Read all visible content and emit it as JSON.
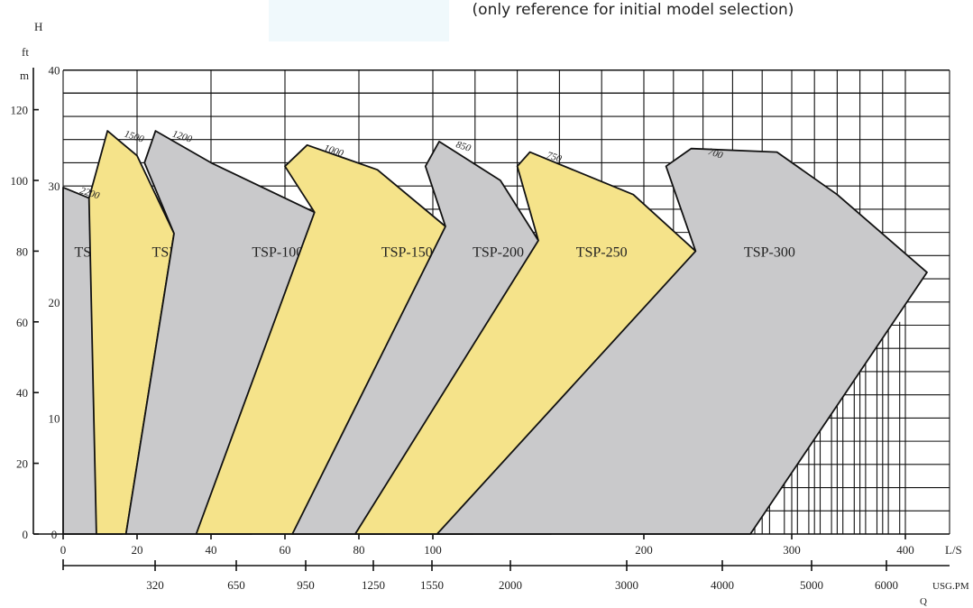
{
  "subtitle": "(only reference for initial model selection)",
  "colors": {
    "gray_region": "#c9c9cb",
    "yellow_region": "#f5e38a",
    "highlight_box": "#f0f9fc"
  },
  "chart_data": {
    "type": "area",
    "title": "",
    "subtitle": "(only reference for initial model selection)",
    "y_axis_label": "H",
    "y_units": [
      "ft",
      "m"
    ],
    "x_axis_label": "Q",
    "x_units": [
      "L/S",
      "USG.PM"
    ],
    "y_ft_ticks": [
      "0",
      "20",
      "40",
      "60",
      "80",
      "100",
      "120"
    ],
    "y_m_ticks": [
      "0",
      "10",
      "20",
      "30",
      "40"
    ],
    "x_ls_ticks": [
      "0",
      "20",
      "40",
      "60",
      "80",
      "100",
      "200",
      "300",
      "400"
    ],
    "x_usgpm_ticks": [
      "320",
      "650",
      "950",
      "1250",
      "1550",
      "2000",
      "3000",
      "4000",
      "5000",
      "6000"
    ],
    "grid": true,
    "notes": "Q axis is linear from 0 to 100 L/S, then compressed (log-like) from 100 to 400 L/S. Head axis in ft (left) and m (inner).",
    "series": [
      {
        "name": "TSP-40",
        "color": "gray",
        "max_speed_rpm": "2200",
        "outline": [
          [
            0,
            0
          ],
          [
            0,
            98
          ],
          [
            7,
            95
          ],
          [
            13,
            89
          ],
          [
            17,
            80
          ],
          [
            16,
            0
          ]
        ]
      },
      {
        "name": "TSP-65",
        "color": "yellow",
        "max_speed_rpm": "1500",
        "outline": [
          [
            9,
            0
          ],
          [
            7,
            95
          ],
          [
            12,
            114
          ],
          [
            20,
            107
          ],
          [
            30,
            85
          ],
          [
            17,
            0
          ]
        ]
      },
      {
        "name": "TSP-100",
        "color": "gray",
        "max_speed_rpm": "1200",
        "outline": [
          [
            17,
            0
          ],
          [
            30,
            85
          ],
          [
            22,
            105
          ],
          [
            25,
            114
          ],
          [
            40,
            105
          ],
          [
            68,
            91
          ],
          [
            51,
            0
          ]
        ]
      },
      {
        "name": "TSP-150",
        "color": "yellow",
        "max_speed_rpm": "1000",
        "outline": [
          [
            36,
            0
          ],
          [
            68,
            91
          ],
          [
            60,
            104
          ],
          [
            66,
            110
          ],
          [
            85,
            103
          ],
          [
            106,
            87
          ],
          [
            87,
            0
          ]
        ]
      },
      {
        "name": "TSP-200",
        "color": "gray",
        "max_speed_rpm": "850",
        "outline": [
          [
            62,
            0
          ],
          [
            106,
            87
          ],
          [
            98,
            104
          ],
          [
            103,
            111
          ],
          [
            132,
            100
          ],
          [
            150,
            83
          ],
          [
            119,
            0
          ]
        ]
      },
      {
        "name": "TSP-250",
        "color": "yellow",
        "max_speed_rpm": "750",
        "outline": [
          [
            79,
            0
          ],
          [
            150,
            83
          ],
          [
            140,
            104
          ],
          [
            146,
            108
          ],
          [
            195,
            96
          ],
          [
            235,
            80
          ],
          [
            156,
            0
          ]
        ]
      },
      {
        "name": "TSP-300",
        "color": "gray",
        "max_speed_rpm": "700",
        "outline": [
          [
            102,
            0
          ],
          [
            235,
            80
          ],
          [
            215,
            104
          ],
          [
            232,
            109
          ],
          [
            290,
            108
          ],
          [
            340,
            96
          ],
          [
            420,
            74
          ],
          [
            272,
            0
          ]
        ]
      }
    ]
  }
}
